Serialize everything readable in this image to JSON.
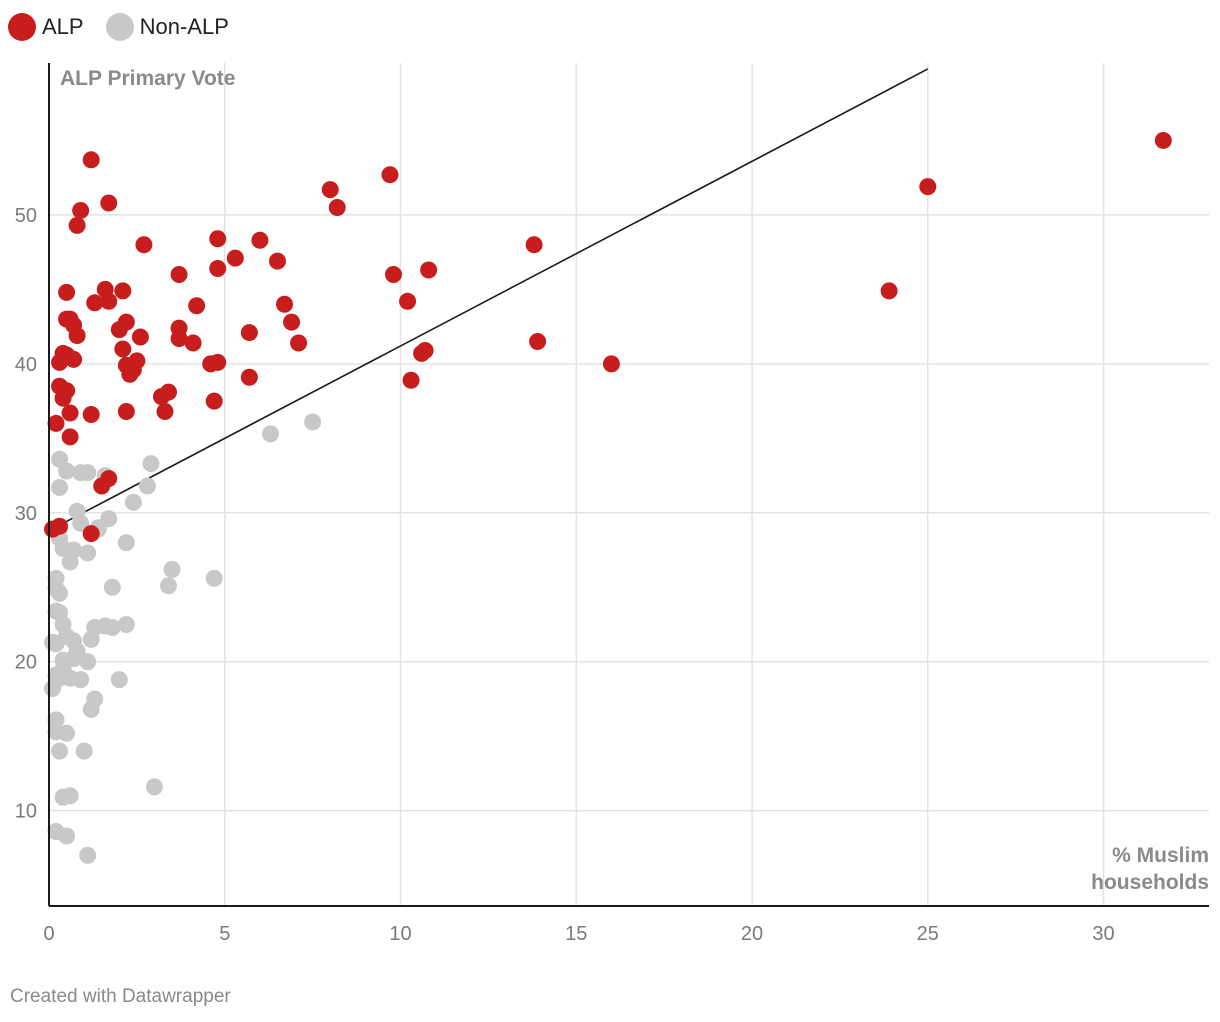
{
  "legend": {
    "items": [
      {
        "label": "ALP",
        "color": "#c71e1d"
      },
      {
        "label": "Non-ALP",
        "color": "#c8c8c8"
      }
    ]
  },
  "footer": {
    "credit": "Created with Datawrapper"
  },
  "chart_data": {
    "type": "scatter",
    "title": "",
    "xlabel": "% Muslim households",
    "ylabel": "ALP Primary Vote",
    "xlim": [
      0,
      33
    ],
    "ylim": [
      3.6,
      60.2
    ],
    "xticks": [
      0,
      5,
      10,
      15,
      20,
      25,
      30
    ],
    "yticks": [
      10,
      20,
      30,
      40,
      50
    ],
    "grid": true,
    "trendline": {
      "x": [
        0,
        25
      ],
      "y": [
        28.8,
        59.8
      ]
    },
    "series": [
      {
        "name": "ALP",
        "color": "#c71e1d",
        "points": [
          [
            31.7,
            55
          ],
          [
            25.0,
            51.9
          ],
          [
            23.9,
            44.9
          ],
          [
            16.0,
            40.0
          ],
          [
            13.8,
            48.0
          ],
          [
            13.9,
            41.5
          ],
          [
            10.8,
            46.3
          ],
          [
            10.2,
            44.2
          ],
          [
            9.8,
            46.0
          ],
          [
            9.7,
            52.7
          ],
          [
            10.7,
            40.9
          ],
          [
            10.6,
            40.7
          ],
          [
            10.3,
            38.9
          ],
          [
            8.2,
            50.5
          ],
          [
            8.0,
            51.7
          ],
          [
            7.1,
            41.4
          ],
          [
            6.9,
            42.8
          ],
          [
            6.7,
            44.0
          ],
          [
            6.5,
            46.9
          ],
          [
            6.0,
            48.3
          ],
          [
            5.7,
            42.1
          ],
          [
            5.7,
            39.1
          ],
          [
            5.3,
            47.1
          ],
          [
            4.8,
            48.4
          ],
          [
            4.8,
            46.4
          ],
          [
            4.8,
            40.1
          ],
          [
            4.7,
            37.5
          ],
          [
            4.6,
            40.0
          ],
          [
            4.2,
            43.9
          ],
          [
            4.1,
            41.4
          ],
          [
            3.7,
            42.4
          ],
          [
            3.7,
            46.0
          ],
          [
            3.7,
            41.7
          ],
          [
            3.4,
            38.1
          ],
          [
            3.3,
            36.8
          ],
          [
            3.2,
            37.8
          ],
          [
            2.7,
            48.0
          ],
          [
            2.6,
            41.8
          ],
          [
            2.5,
            40.2
          ],
          [
            2.4,
            39.6
          ],
          [
            2.3,
            39.3
          ],
          [
            2.2,
            42.8
          ],
          [
            2.2,
            36.8
          ],
          [
            2.2,
            39.9
          ],
          [
            2.1,
            41.0
          ],
          [
            2.0,
            42.3
          ],
          [
            2.1,
            44.9
          ],
          [
            1.7,
            50.8
          ],
          [
            1.7,
            44.2
          ],
          [
            1.6,
            45.0
          ],
          [
            1.7,
            32.3
          ],
          [
            1.5,
            31.8
          ],
          [
            1.2,
            53.7
          ],
          [
            1.3,
            44.1
          ],
          [
            1.2,
            36.6
          ],
          [
            1.2,
            28.6
          ],
          [
            0.9,
            50.3
          ],
          [
            0.8,
            49.3
          ],
          [
            0.8,
            41.9
          ],
          [
            0.7,
            40.3
          ],
          [
            0.7,
            42.6
          ],
          [
            0.6,
            43.0
          ],
          [
            0.6,
            36.7
          ],
          [
            0.6,
            35.1
          ],
          [
            0.5,
            44.8
          ],
          [
            0.5,
            38.2
          ],
          [
            0.5,
            43.0
          ],
          [
            0.5,
            40.6
          ],
          [
            0.4,
            40.7
          ],
          [
            0.4,
            37.7
          ],
          [
            0.3,
            38.5
          ],
          [
            0.3,
            40.1
          ],
          [
            0.3,
            29.1
          ],
          [
            0.2,
            36.0
          ],
          [
            0.1,
            28.9
          ]
        ]
      },
      {
        "name": "Non-ALP",
        "color": "#c8c8c8",
        "points": [
          [
            7.5,
            36.1
          ],
          [
            6.3,
            35.3
          ],
          [
            4.7,
            25.6
          ],
          [
            3.5,
            26.2
          ],
          [
            3.4,
            25.1
          ],
          [
            3.0,
            11.6
          ],
          [
            2.9,
            33.3
          ],
          [
            2.8,
            31.8
          ],
          [
            2.4,
            30.7
          ],
          [
            2.2,
            28.0
          ],
          [
            2.2,
            22.5
          ],
          [
            2.0,
            18.8
          ],
          [
            1.8,
            25.0
          ],
          [
            1.8,
            22.3
          ],
          [
            1.7,
            29.6
          ],
          [
            1.6,
            22.4
          ],
          [
            1.6,
            32.5
          ],
          [
            1.4,
            29.0
          ],
          [
            1.4,
            28.9
          ],
          [
            1.3,
            17.5
          ],
          [
            1.3,
            22.3
          ],
          [
            1.2,
            21.5
          ],
          [
            1.2,
            16.8
          ],
          [
            1.1,
            32.7
          ],
          [
            1.1,
            27.3
          ],
          [
            1.1,
            20.0
          ],
          [
            1.0,
            14.0
          ],
          [
            1.1,
            7.0
          ],
          [
            0.9,
            32.7
          ],
          [
            0.9,
            29.3
          ],
          [
            0.9,
            18.8
          ],
          [
            0.8,
            30.1
          ],
          [
            0.8,
            20.7
          ],
          [
            0.7,
            20.2
          ],
          [
            0.7,
            27.5
          ],
          [
            0.7,
            21.4
          ],
          [
            0.6,
            26.7
          ],
          [
            0.6,
            18.9
          ],
          [
            0.6,
            11.0
          ],
          [
            0.5,
            32.8
          ],
          [
            0.5,
            21.7
          ],
          [
            0.5,
            15.2
          ],
          [
            0.5,
            8.3
          ],
          [
            0.4,
            27.6
          ],
          [
            0.4,
            22.5
          ],
          [
            0.4,
            20.1
          ],
          [
            0.4,
            10.9
          ],
          [
            0.3,
            33.6
          ],
          [
            0.3,
            31.7
          ],
          [
            0.3,
            29.0
          ],
          [
            0.3,
            28.3
          ],
          [
            0.3,
            24.6
          ],
          [
            0.3,
            23.3
          ],
          [
            0.3,
            14.0
          ],
          [
            0.3,
            18.9
          ],
          [
            0.2,
            25.6
          ],
          [
            0.2,
            24.9
          ],
          [
            0.2,
            23.4
          ],
          [
            0.2,
            21.2
          ],
          [
            0.2,
            19.1
          ],
          [
            0.2,
            16.1
          ],
          [
            0.2,
            15.3
          ],
          [
            0.2,
            8.6
          ],
          [
            0.1,
            21.3
          ],
          [
            0.1,
            18.2
          ],
          [
            0.4,
            19.5
          ]
        ]
      }
    ]
  }
}
